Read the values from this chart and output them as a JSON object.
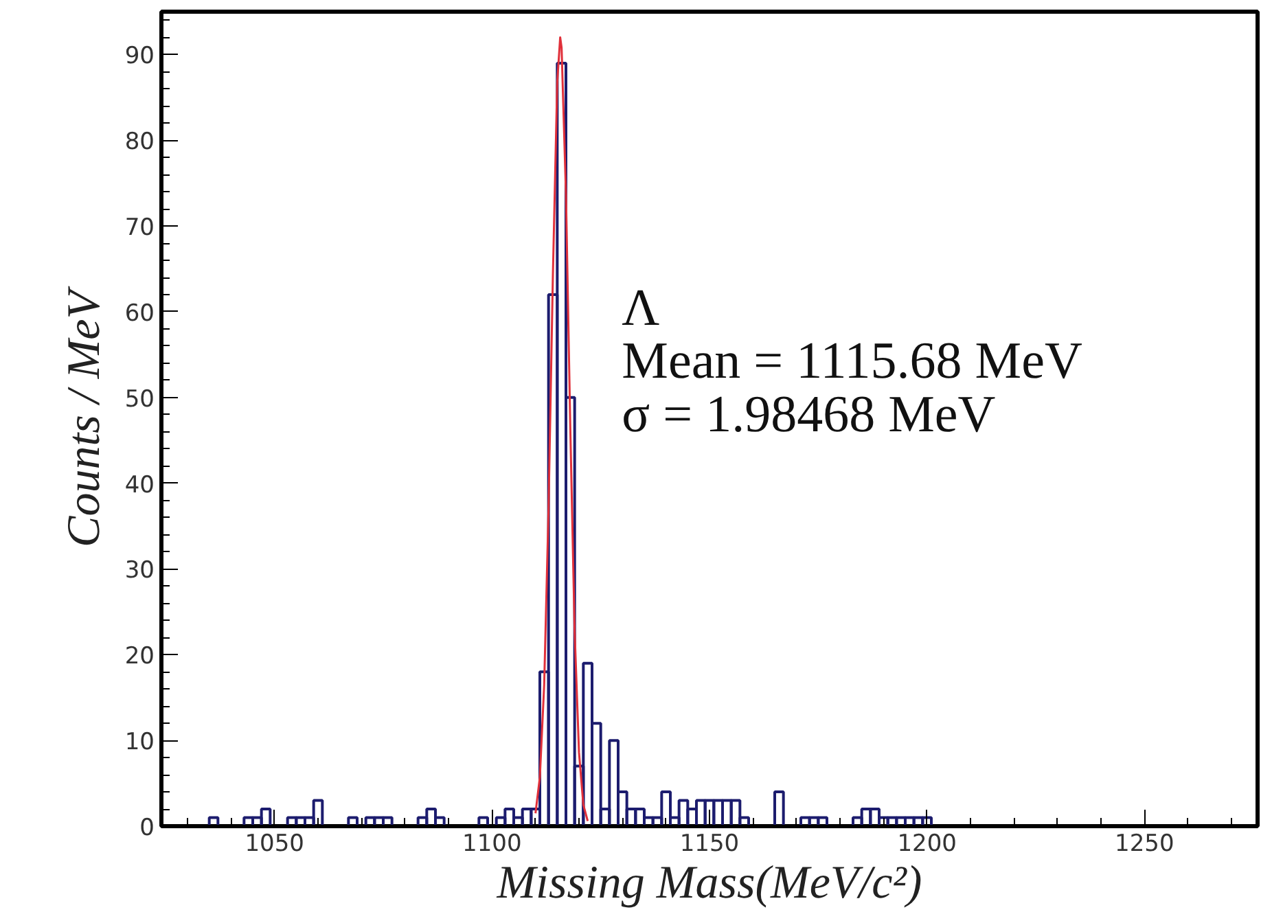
{
  "chart_data": {
    "type": "histogram",
    "xlabel": "Missing Mass(MeV/c²)",
    "ylabel": "Counts / MeV",
    "bins": [
      1033,
      1035,
      1037,
      1039,
      1041,
      1043,
      1045,
      1047,
      1049,
      1051,
      1053,
      1055,
      1057,
      1059,
      1061,
      1063,
      1065,
      1067,
      1069,
      1071,
      1073,
      1075,
      1077,
      1079,
      1081,
      1083,
      1085,
      1087,
      1089,
      1091,
      1093,
      1095,
      1097,
      1099,
      1101,
      1103,
      1105,
      1107,
      1109,
      1111,
      1113,
      1115,
      1117,
      1119,
      1121,
      1123,
      1125,
      1127,
      1129,
      1131,
      1133,
      1135,
      1137,
      1139,
      1141,
      1143,
      1145,
      1147,
      1149,
      1151,
      1153,
      1155,
      1157,
      1159,
      1161,
      1163,
      1165,
      1167,
      1169,
      1171,
      1173,
      1175,
      1177,
      1179,
      1181,
      1183,
      1185,
      1187,
      1189,
      1191,
      1193,
      1195,
      1197,
      1199,
      1201
    ],
    "values": [
      0,
      1,
      0,
      0,
      0,
      1,
      1,
      2,
      0,
      0,
      1,
      1,
      1,
      3,
      0,
      0,
      0,
      1,
      0,
      1,
      1,
      1,
      0,
      0,
      0,
      1,
      2,
      1,
      0,
      0,
      0,
      0,
      1,
      0,
      1,
      2,
      1,
      2,
      2,
      18,
      62,
      89,
      50,
      7,
      19,
      12,
      2,
      10,
      4,
      2,
      2,
      1,
      1,
      4,
      1,
      3,
      2,
      3,
      3,
      3,
      3,
      3,
      1,
      0,
      0,
      0,
      4,
      0,
      0,
      1,
      1,
      1,
      0,
      0,
      0,
      1,
      2,
      2,
      1,
      1,
      1,
      1,
      1,
      1
    ],
    "color": "#1c1c6e",
    "series": [
      {
        "type": "line",
        "color": "#e0303a",
        "x": [
          1110,
          1111,
          1112,
          1113,
          1114,
          1115,
          1115.68,
          1116,
          1117,
          1118,
          1119,
          1120,
          1121,
          1122
        ],
        "values": [
          1.5,
          5.7,
          16.5,
          37.0,
          64.3,
          86.8,
          92,
          90.8,
          73.8,
          46.5,
          22.7,
          8.6,
          2.5,
          0.6
        ]
      }
    ],
    "annotations": [
      "Λ",
      "Mean = 1115.68 MeV",
      "σ = 1.98468 MeV"
    ],
    "xlim": [
      1024,
      1276
    ],
    "ylim": [
      0,
      95
    ],
    "xticks": [
      1050,
      1100,
      1150,
      1200,
      1250
    ],
    "yticks": [
      0,
      10,
      20,
      30,
      40,
      50,
      60,
      70,
      80,
      90
    ],
    "grid": false
  }
}
